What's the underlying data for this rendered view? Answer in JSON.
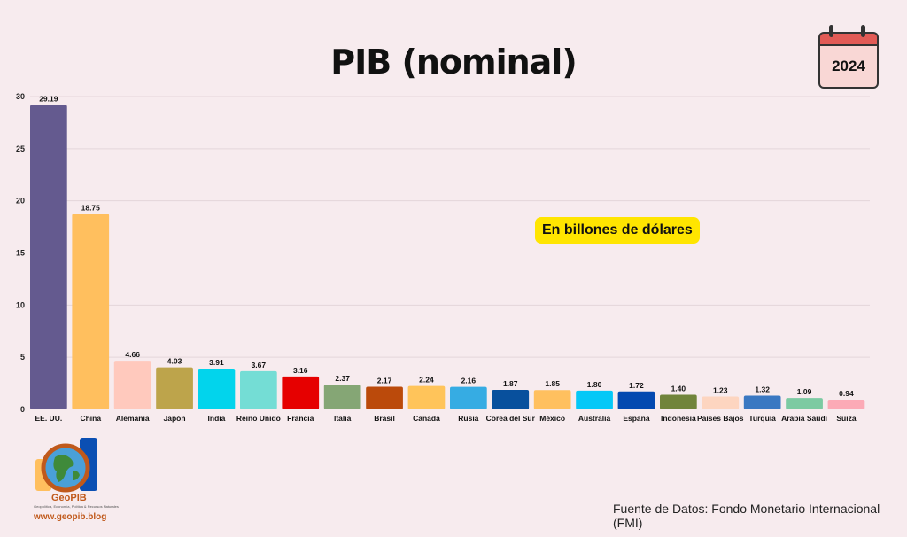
{
  "chart_data": {
    "type": "bar",
    "title": "PIB (nominal)",
    "subtitle": "En billones de dólares",
    "year": "2024",
    "categories": [
      "EE. UU.",
      "China",
      "Alemania",
      "Japón",
      "India",
      "Reino Unido",
      "Francia",
      "Italia",
      "Brasil",
      "Canadá",
      "Rusia",
      "Corea del Sur",
      "México",
      "Australia",
      "España",
      "Indonesia",
      "Países Bajos",
      "Turquía",
      "Arabia Saudí",
      "Suiza"
    ],
    "values": [
      29.19,
      18.75,
      4.66,
      4.03,
      3.91,
      3.67,
      3.16,
      2.37,
      2.17,
      2.24,
      2.16,
      1.87,
      1.85,
      1.8,
      1.72,
      1.4,
      1.23,
      1.32,
      1.09,
      0.94
    ],
    "value_labels": [
      "29.19",
      "18.75",
      "4.66",
      "4.03",
      "3.91",
      "3.67",
      "3.16",
      "2.37",
      "2.17",
      "2.24",
      "2.16",
      "1.87",
      "1.85",
      "1.80",
      "1.72",
      "1.40",
      "1.23",
      "1.32",
      "1.09",
      "0.94"
    ],
    "colors": [
      "#645a8f",
      "#ffbf5e",
      "#ffc9bd",
      "#bda44b",
      "#02d4ec",
      "#74ddd5",
      "#e60000",
      "#85a675",
      "#bb4a0b",
      "#ffc45a",
      "#36ace3",
      "#08509d",
      "#ffc05f",
      "#05c8f7",
      "#0349b0",
      "#71843b",
      "#fdd5c0",
      "#3a78c2",
      "#7ccaa2",
      "#fcaab6"
    ],
    "yticks": [
      0,
      5,
      10,
      15,
      20,
      25,
      30
    ],
    "ylim": [
      0,
      30
    ],
    "xlabel": "",
    "ylabel": "",
    "grid": true,
    "legend": "none"
  },
  "logo": {
    "name": "GeoPIB",
    "tagline": "Geopolítica, Economía, Política & Recursos Naturales",
    "url": "www.geopib.blog",
    "icon": "globe-icon"
  },
  "source": "Fuente de Datos: Fondo Monetario Internacional (FMI)"
}
